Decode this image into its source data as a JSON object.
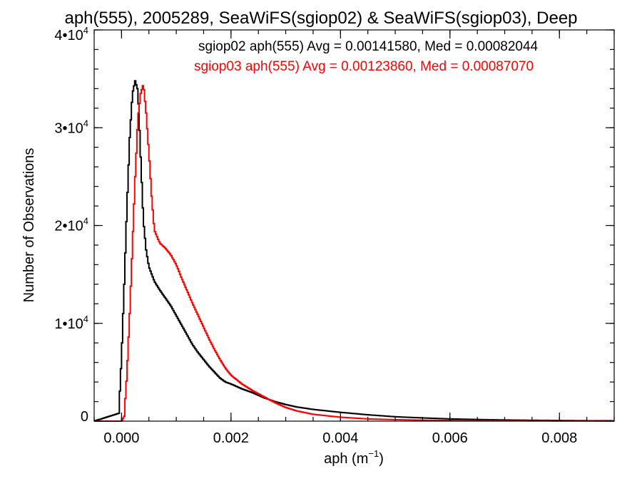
{
  "chart_data": {
    "type": "line",
    "title": "aph(555), 2005289, SeaWiFS(sgiop02) & SeaWiFS(sgiop03), Deep",
    "xlabel_base": "aph (m",
    "xlabel_exp": "−1",
    "xlabel_close": ")",
    "ylabel": "Number of Observations",
    "xlim": [
      -0.0005,
      0.009
    ],
    "ylim": [
      0,
      40000
    ],
    "x_ticks": [
      {
        "value": 0.0,
        "label": "0.000"
      },
      {
        "value": 0.002,
        "label": "0.002"
      },
      {
        "value": 0.004,
        "label": "0.004"
      },
      {
        "value": 0.006,
        "label": "0.006"
      },
      {
        "value": 0.008,
        "label": "0.008"
      }
    ],
    "y_ticks": [
      {
        "value": 0,
        "label": "0",
        "exp": ""
      },
      {
        "value": 10000,
        "label": "1•10",
        "exp": "4"
      },
      {
        "value": 20000,
        "label": "2•10",
        "exp": "4"
      },
      {
        "value": 30000,
        "label": "3•10",
        "exp": "4"
      },
      {
        "value": 40000,
        "label": "4•10",
        "exp": "4"
      }
    ],
    "grid": false,
    "legend_position": "top-right",
    "series": [
      {
        "name": "sgiop02 aph(555) Avg = 0.00141580, Med = 0.00082044",
        "color": "#000000",
        "x": [
          -0.0005,
          -5e-05,
          0.0,
          5e-05,
          0.0001,
          0.00015,
          0.0002,
          0.00025,
          0.0003,
          0.00035,
          0.0004,
          0.00045,
          0.0005,
          0.0006,
          0.0007,
          0.0008,
          0.0009,
          0.001,
          0.0011,
          0.0012,
          0.0013,
          0.0014,
          0.0015,
          0.0016,
          0.0017,
          0.0018,
          0.0019,
          0.002,
          0.0022,
          0.0024,
          0.0026,
          0.0028,
          0.003,
          0.0032,
          0.0035,
          0.004,
          0.0045,
          0.005,
          0.0055,
          0.006,
          0.0065,
          0.007,
          0.0075,
          0.008,
          0.0085,
          0.009
        ],
        "y": [
          0,
          800,
          6500,
          14000,
          22000,
          29000,
          33500,
          34800,
          33800,
          27000,
          20500,
          17500,
          15800,
          14300,
          13400,
          12600,
          11800,
          10800,
          9800,
          8800,
          7800,
          7000,
          6300,
          5600,
          5000,
          4400,
          4000,
          3800,
          3300,
          2900,
          2400,
          2000,
          1700,
          1450,
          1200,
          900,
          650,
          450,
          330,
          230,
          170,
          120,
          90,
          70,
          50,
          40
        ]
      },
      {
        "name": "sgiop03 aph(555) Avg = 0.00123860, Med = 0.00087070",
        "color": "#ff0000",
        "x": [
          -0.0005,
          0.0,
          5e-05,
          0.0001,
          0.00015,
          0.0002,
          0.00025,
          0.0003,
          0.00035,
          0.0004,
          0.00045,
          0.0005,
          0.00055,
          0.0006,
          0.0007,
          0.0008,
          0.0009,
          0.001,
          0.0011,
          0.0012,
          0.0013,
          0.0014,
          0.0015,
          0.0016,
          0.0017,
          0.0018,
          0.0019,
          0.002,
          0.0022,
          0.0024,
          0.0026,
          0.0028,
          0.003,
          0.0032,
          0.0035,
          0.004,
          0.0045,
          0.005,
          0.0055,
          0.006,
          0.0065,
          0.007,
          0.0075,
          0.008,
          0.0085,
          0.009
        ],
        "y": [
          0,
          0,
          500,
          5000,
          11000,
          18000,
          25000,
          31000,
          33500,
          34500,
          31500,
          27500,
          23000,
          19500,
          18200,
          17700,
          17000,
          16000,
          14600,
          13300,
          12000,
          10800,
          9600,
          8400,
          7300,
          6300,
          5400,
          4700,
          3800,
          3100,
          2500,
          1900,
          1400,
          1050,
          700,
          400,
          230,
          150,
          100,
          70,
          50,
          40,
          30,
          20,
          15,
          10
        ]
      }
    ]
  }
}
